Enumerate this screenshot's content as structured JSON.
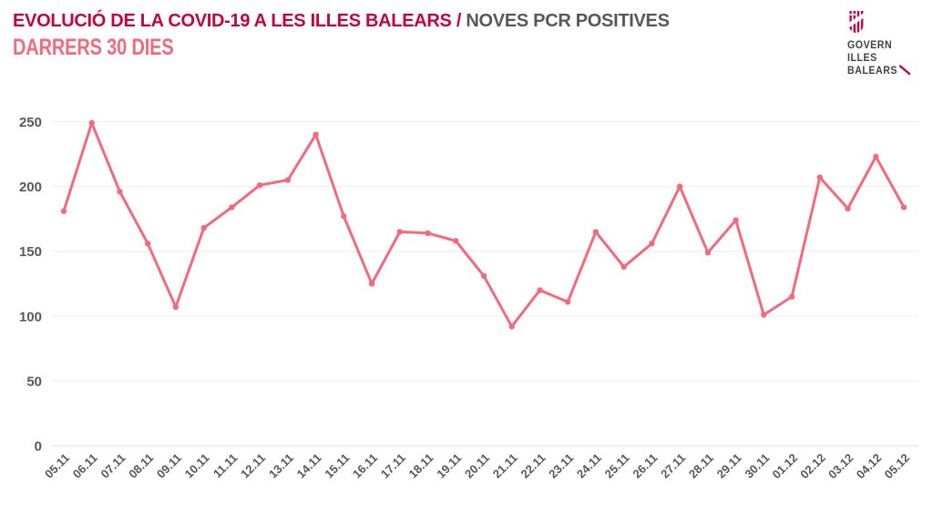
{
  "header": {
    "title_primary": "EVOLUCIÓ DE LA COVID-19 A LES ILLES BALEARS /",
    "title_secondary": "NOVES PCR POSITIVES",
    "subtitle": "DARRERS 30 DIES"
  },
  "logo": {
    "line1": "GOVERN",
    "line2": "ILLES",
    "line3": "BALEARS"
  },
  "colors": {
    "crimson": "#c70341",
    "pink": "#f4697c",
    "gray_text": "#58585a",
    "gridline": "#ededed",
    "baseline": "#dcdcdc"
  },
  "chart_data": {
    "type": "line",
    "title": "EVOLUCIÓ DE LA COVID-19 A LES ILLES BALEARS / NOVES PCR POSITIVES",
    "subtitle": "DARRERS 30 DIES",
    "categories": [
      "05.11",
      "06.11",
      "07.11",
      "08.11",
      "09.11",
      "10.11",
      "11.11",
      "12.11",
      "13.11",
      "14.11",
      "15.11",
      "16.11",
      "17.11",
      "18.11",
      "19.11",
      "20.11",
      "21.11",
      "22.11",
      "23.11",
      "24.11",
      "25.11",
      "26.11",
      "27.11",
      "28.11",
      "29.11",
      "30.11",
      "01.12",
      "02.12",
      "03.12",
      "04.12",
      "05.12"
    ],
    "values": [
      181,
      249,
      196,
      156,
      107,
      168,
      184,
      201,
      205,
      240,
      177,
      125,
      165,
      164,
      158,
      131,
      92,
      120,
      111,
      165,
      138,
      156,
      200,
      149,
      174,
      101,
      115,
      207,
      183,
      223,
      184
    ],
    "xlabel": "",
    "ylabel": "",
    "ylim": [
      0,
      250
    ],
    "yticks": [
      0,
      50,
      100,
      150,
      200,
      250
    ],
    "grid": "horizontal-only",
    "legend": "none",
    "line_color": "#f4697c",
    "marker": "circle",
    "x_tick_rotation": -45
  }
}
